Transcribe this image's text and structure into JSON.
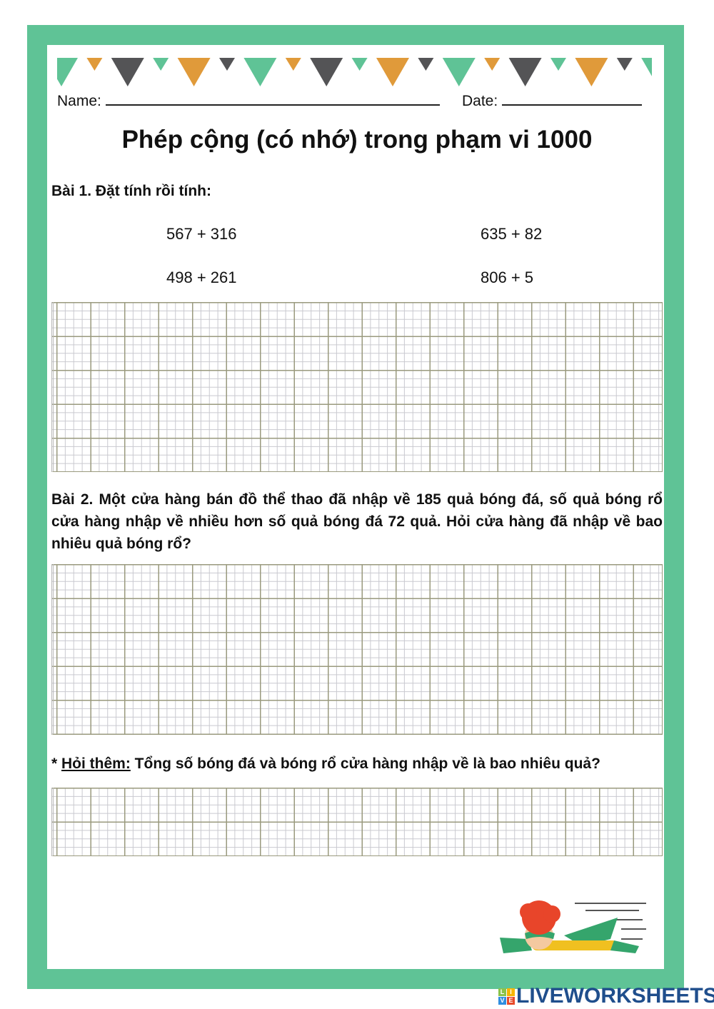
{
  "colors": {
    "frame": "#5fc396",
    "bunting": [
      "#5fc396",
      "#e09a3a",
      "#545456"
    ]
  },
  "header": {
    "name_label": "Name:",
    "date_label": "Date:"
  },
  "title": "Phép cộng (có nhớ) trong phạm vi 1000",
  "bai1": {
    "heading": "Bài 1. Đặt tính rồi tính:",
    "exprs": [
      "567 + 316",
      "635 + 82",
      "498 + 261",
      "806 + 5"
    ]
  },
  "bai2": {
    "text": "Bài 2. Một cửa hàng bán đồ thể thao đã nhập về 185 quả bóng đá, số quả bóng rổ cửa hàng nhập về nhiều hơn số quả bóng đá 72 quả. Hỏi cửa hàng đã nhập về bao nhiêu quả bóng rổ?"
  },
  "hoi_them": {
    "prefix": "* ",
    "label": "Hỏi thêm:",
    "text": " Tổng số bóng đá và bóng rổ cửa hàng nhập về là bao nhiêu quả?"
  },
  "illustration": "flying-superhero-kid",
  "logo": {
    "letters": [
      "L",
      "I",
      "V",
      "E"
    ],
    "text": "LIVEWORKSHEETS"
  }
}
